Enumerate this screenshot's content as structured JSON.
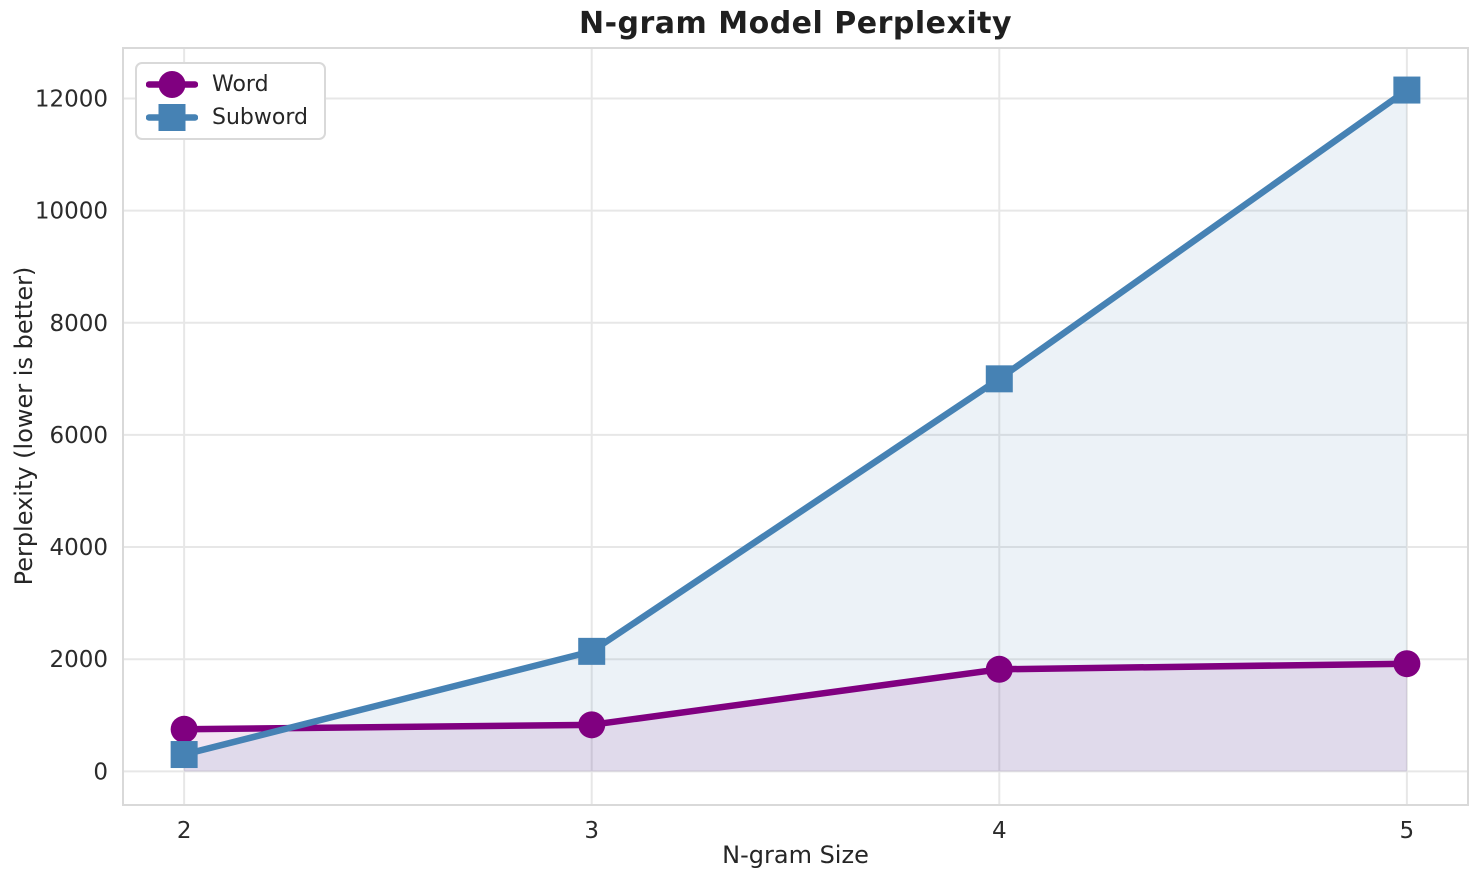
{
  "title": "N-gram Model Perplexity",
  "chart_data": {
    "type": "line",
    "title": "N-gram Model Perplexity",
    "xlabel": "N-gram Size",
    "ylabel": "Perplexity (lower is better)",
    "x": [
      2,
      3,
      4,
      5
    ],
    "series": [
      {
        "name": "Word",
        "marker": "circle",
        "color": "#800080",
        "values": [
          750,
          830,
          1820,
          1920
        ]
      },
      {
        "name": "Subword",
        "marker": "square",
        "color": "#4682b4",
        "values": [
          300,
          2140,
          7000,
          12150
        ]
      }
    ],
    "xticks": [
      2,
      3,
      4,
      5
    ],
    "yticks": [
      0,
      2000,
      4000,
      6000,
      8000,
      10000,
      12000
    ],
    "xlim": [
      1.85,
      5.15
    ],
    "ylim": [
      -600,
      12900
    ],
    "grid": true,
    "legend_position": "upper left",
    "fill_alpha": 0.1,
    "colors": {
      "background": "#ffffff",
      "grid": "#e7e7e7",
      "spine": "#d9d9d9",
      "text": "#262626"
    }
  }
}
